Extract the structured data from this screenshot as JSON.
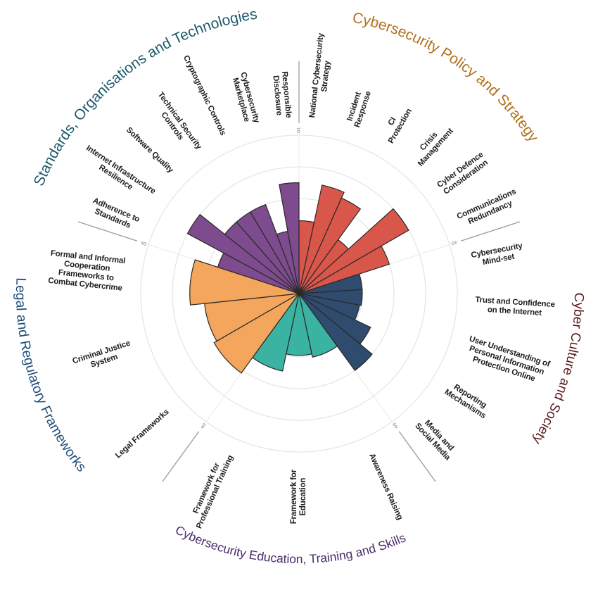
{
  "chart_data": {
    "type": "bar",
    "subtype": "radial-bar",
    "title": "",
    "ylim": [
      0,
      5
    ],
    "grid": true,
    "dimensions": [
      {
        "tag": "D1",
        "title": "Cybersecurity Policy and Strategy",
        "color": "#d9564a",
        "title_color": "#b0711d",
        "factors": [
          {
            "label": "National Cybersecurity\nStrategy",
            "value": 2.3
          },
          {
            "label": "Incident\nResponse",
            "value": 3.5
          },
          {
            "label": "CI\nProtection",
            "value": 3.3
          },
          {
            "label": "Crisis\nManagement",
            "value": 2.1
          },
          {
            "label": "Cyber Defence\nConsideration",
            "value": 4.0
          },
          {
            "label": "Communications\nRedundancy",
            "value": 3.0
          }
        ]
      },
      {
        "tag": "D2",
        "title": "Cyber Culture and Society",
        "color": "#2f4b6e",
        "title_color": "#5a1a1c",
        "factors": [
          {
            "label": "Cybersecurity\nMind-set",
            "value": 2.0
          },
          {
            "label": "Trust and Confidence\non the Internet",
            "value": 2.0
          },
          {
            "label": "User Understanding of\nPersonal Information\nProtection Online",
            "value": 1.95
          },
          {
            "label": "Reporting\nMechanisms",
            "value": 2.5
          },
          {
            "label": "Media and\nSocial Media",
            "value": 3.0
          }
        ]
      },
      {
        "tag": "D3",
        "title": "Cybersecurity Education, Training and Skills",
        "color": "#3bb3a2",
        "title_color": "#4a2b6b",
        "factors": [
          {
            "label": "Awareness Raising",
            "value": 2.05
          },
          {
            "label": "Framework for\nEducation",
            "value": 1.95
          },
          {
            "label": "Framework for\nProfessional Training",
            "value": 2.5
          }
        ]
      },
      {
        "tag": "D4",
        "title": "Legal and Regulatory Frameworks",
        "color": "#f3a65c",
        "title_color": "#1f4e79",
        "factors": [
          {
            "label": "Legal Frameworks",
            "value": 3.1
          },
          {
            "label": "Criminal Justice\nSystem",
            "value": 3.0
          },
          {
            "label": "Formal and Informal\nCooperation\nFrameworks to\nCombat Cybercrime",
            "value": 3.45
          }
        ]
      },
      {
        "tag": "D5",
        "title": "Standards, Organisations and Technologies",
        "color": "#7d4b8e",
        "title_color": "#1b5a6b",
        "factors": [
          {
            "label": "Adherence to\nStandards",
            "value": 2.7
          },
          {
            "label": "Internet Infrastructure\nResilience",
            "value": 4.0
          },
          {
            "label": "Software Quality",
            "value": 3.0
          },
          {
            "label": "Technical Security\nControls",
            "value": 3.0
          },
          {
            "label": "Cryptographic Controls",
            "value": 3.0
          },
          {
            "label": "Cybersecurity\nMarketplace",
            "value": 2.0
          },
          {
            "label": "Responsible\nDisclosure",
            "value": 3.5
          }
        ]
      }
    ]
  }
}
